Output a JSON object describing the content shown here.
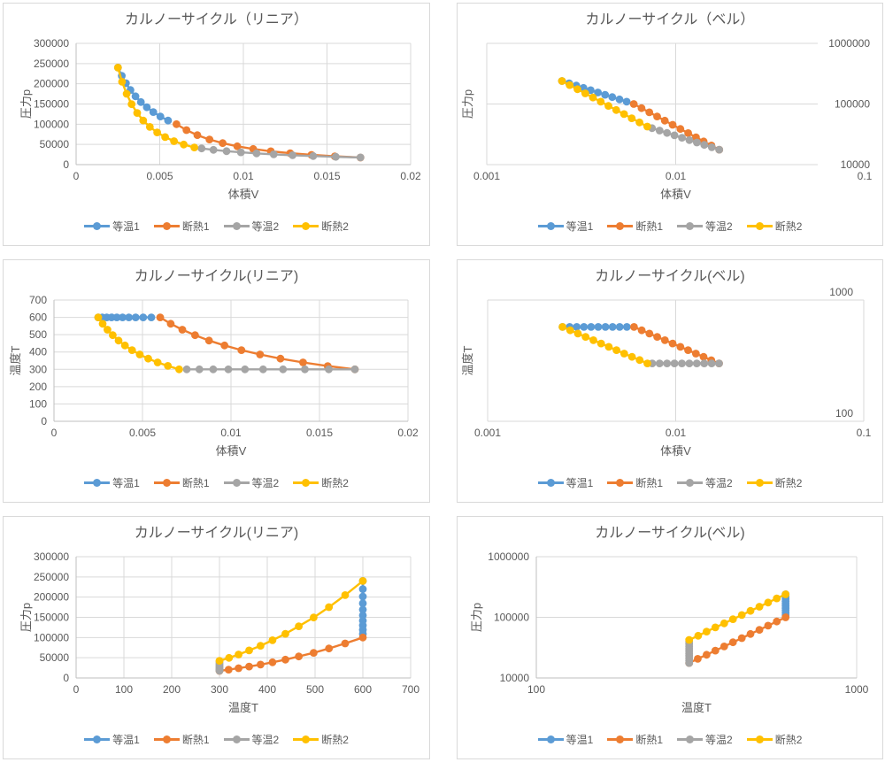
{
  "ui": {
    "background": "#FFFFFF",
    "panel_border": "#D9D9D9",
    "text_color": "#595959",
    "grid_color": "#D9D9D9",
    "axis_color": "#BFBFBF"
  },
  "chart_data": {
    "type": "line",
    "description_series_fields": "V=volume, T=temperature, p=pressure; each chart plots two of these fields",
    "series": [
      {
        "key": "isotherm1",
        "name": "等温1",
        "color": "#5B9BD5",
        "V": [
          0.0025,
          0.002729,
          0.002979,
          0.003251,
          0.003549,
          0.003874,
          0.004229,
          0.004616,
          0.005039,
          0.0055
        ],
        "T": [
          600,
          600,
          600,
          600,
          600,
          600,
          600,
          600,
          600,
          600
        ],
        "p": [
          240000,
          219868,
          201424,
          184530,
          169053,
          154871,
          141881,
          129980,
          119078,
          109091
        ]
      },
      {
        "key": "adiabat1",
        "name": "断熱1",
        "color": "#ED7D31",
        "V": [
          0.006,
          0.006596,
          0.007251,
          0.007971,
          0.008762,
          0.009633,
          0.010589,
          0.011641,
          0.012797,
          0.014068,
          0.015465,
          0.017
        ],
        "T": [
          600,
          563,
          529,
          497,
          466,
          438,
          411,
          386,
          362,
          340,
          319,
          300
        ],
        "p": [
          100000,
          85403,
          72937,
          62289,
          53196,
          45431,
          38799,
          33135,
          28298,
          24166,
          20639,
          17626
        ]
      },
      {
        "key": "isotherm2",
        "name": "等温2",
        "color": "#A5A5A5",
        "V": [
          0.017,
          0.015523,
          0.014173,
          0.012942,
          0.011817,
          0.01079,
          0.009852,
          0.008996,
          0.008214,
          0.0075
        ],
        "T": [
          300,
          300,
          300,
          300,
          300,
          300,
          300,
          300,
          300,
          300
        ],
        "p": [
          17647,
          19327,
          21167,
          23181,
          25388,
          27804,
          30451,
          33349,
          36523,
          40000
        ]
      },
      {
        "key": "adiabat2",
        "name": "断熱2",
        "color": "#FFC000",
        "V": [
          0.007071,
          0.006433,
          0.005853,
          0.005325,
          0.004845,
          0.004408,
          0.004011,
          0.003649,
          0.00332,
          0.00302,
          0.002748,
          0.0025
        ],
        "T": [
          300,
          320,
          340,
          362,
          386,
          411,
          438,
          466,
          497,
          529,
          563,
          600
        ],
        "p": [
          42426,
          49665,
          58137,
          68056,
          79668,
          93260,
          109171,
          127798,
          149602,
          175124,
          205004,
          240000
        ]
      }
    ],
    "charts": [
      {
        "id": "pv-linear",
        "title": "カルノーサイクル（リニア）",
        "xlabel": "体積V",
        "ylabel": "圧力p",
        "x": "V",
        "y": "p",
        "xscale": "linear",
        "yscale": "linear",
        "xlim": [
          0,
          0.02
        ],
        "ylim": [
          0,
          300000
        ],
        "xticks": [
          0,
          0.005,
          0.01,
          0.015,
          0.02
        ],
        "xtick_labels": [
          "0",
          "0.005",
          "0.01",
          "0.015",
          "0.02"
        ],
        "yticks": [
          0,
          50000,
          100000,
          150000,
          200000,
          250000,
          300000
        ],
        "ytick_labels": [
          "0",
          "50000",
          "100000",
          "150000",
          "200000",
          "250000",
          "300000"
        ],
        "grid": true,
        "legend_position": "bottom"
      },
      {
        "id": "pv-log",
        "title": "カルノーサイクル（ベル）",
        "xlabel": "体積V",
        "ylabel": "圧力p",
        "x": "V",
        "y": "p",
        "xscale": "log",
        "yscale": "log",
        "xlim": [
          0.001,
          0.1
        ],
        "ylim": [
          10000,
          1000000
        ],
        "xticks": [
          0.001,
          0.01,
          0.1
        ],
        "xtick_labels": [
          "0.001",
          "0.01",
          "0.1"
        ],
        "yticks": [
          10000,
          100000,
          1000000
        ],
        "ytick_labels": [
          "10000",
          "100000",
          "1000000"
        ],
        "grid": true,
        "legend_position": "bottom"
      },
      {
        "id": "tv-linear",
        "title": "カルノーサイクル(リニア)",
        "xlabel": "体積V",
        "ylabel": "温度T",
        "x": "V",
        "y": "T",
        "xscale": "linear",
        "yscale": "linear",
        "xlim": [
          0,
          0.02
        ],
        "ylim": [
          0,
          700
        ],
        "xticks": [
          0,
          0.005,
          0.01,
          0.015,
          0.02
        ],
        "xtick_labels": [
          "0",
          "0.005",
          "0.01",
          "0.015",
          "0.02"
        ],
        "yticks": [
          0,
          100,
          200,
          300,
          400,
          500,
          600,
          700
        ],
        "ytick_labels": [
          "0",
          "100",
          "200",
          "300",
          "400",
          "500",
          "600",
          "700"
        ],
        "grid": true,
        "legend_position": "bottom"
      },
      {
        "id": "tv-log",
        "title": "カルノーサイクル(ベル)",
        "xlabel": "体積V",
        "ylabel": "温度T",
        "x": "V",
        "y": "T",
        "xscale": "log",
        "yscale": "log",
        "xlim": [
          0.001,
          0.1
        ],
        "ylim": [
          100,
          1000
        ],
        "xticks": [
          0.001,
          0.01,
          0.1
        ],
        "xtick_labels": [
          "0.001",
          "0.01",
          "0.1"
        ],
        "yticks": [
          100,
          1000
        ],
        "ytick_labels": [
          "100",
          "1000"
        ],
        "grid": true,
        "legend_position": "bottom"
      },
      {
        "id": "pt-linear",
        "title": "カルノーサイクル(リニア)",
        "xlabel": "温度T",
        "ylabel": "圧力p",
        "x": "T",
        "y": "p",
        "xscale": "linear",
        "yscale": "linear",
        "xlim": [
          0,
          700
        ],
        "ylim": [
          0,
          300000
        ],
        "xticks": [
          0,
          100,
          200,
          300,
          400,
          500,
          600,
          700
        ],
        "xtick_labels": [
          "0",
          "100",
          "200",
          "300",
          "400",
          "500",
          "600",
          "700"
        ],
        "yticks": [
          0,
          50000,
          100000,
          150000,
          200000,
          250000,
          300000
        ],
        "ytick_labels": [
          "0",
          "50000",
          "100000",
          "150000",
          "200000",
          "250000",
          "300000"
        ],
        "grid": true,
        "legend_position": "bottom"
      },
      {
        "id": "pt-log",
        "title": "カルノーサイクル(ベル)",
        "xlabel": "温度T",
        "ylabel": "圧力p",
        "x": "T",
        "y": "p",
        "xscale": "log",
        "yscale": "log",
        "xlim": [
          100,
          1000
        ],
        "ylim": [
          10000,
          1000000
        ],
        "xticks": [
          100,
          1000
        ],
        "xtick_labels": [
          "100",
          "1000"
        ],
        "yticks": [
          10000,
          100000,
          1000000
        ],
        "ytick_labels": [
          "10000",
          "100000",
          "1000000"
        ],
        "grid": true,
        "legend_position": "bottom"
      }
    ]
  }
}
